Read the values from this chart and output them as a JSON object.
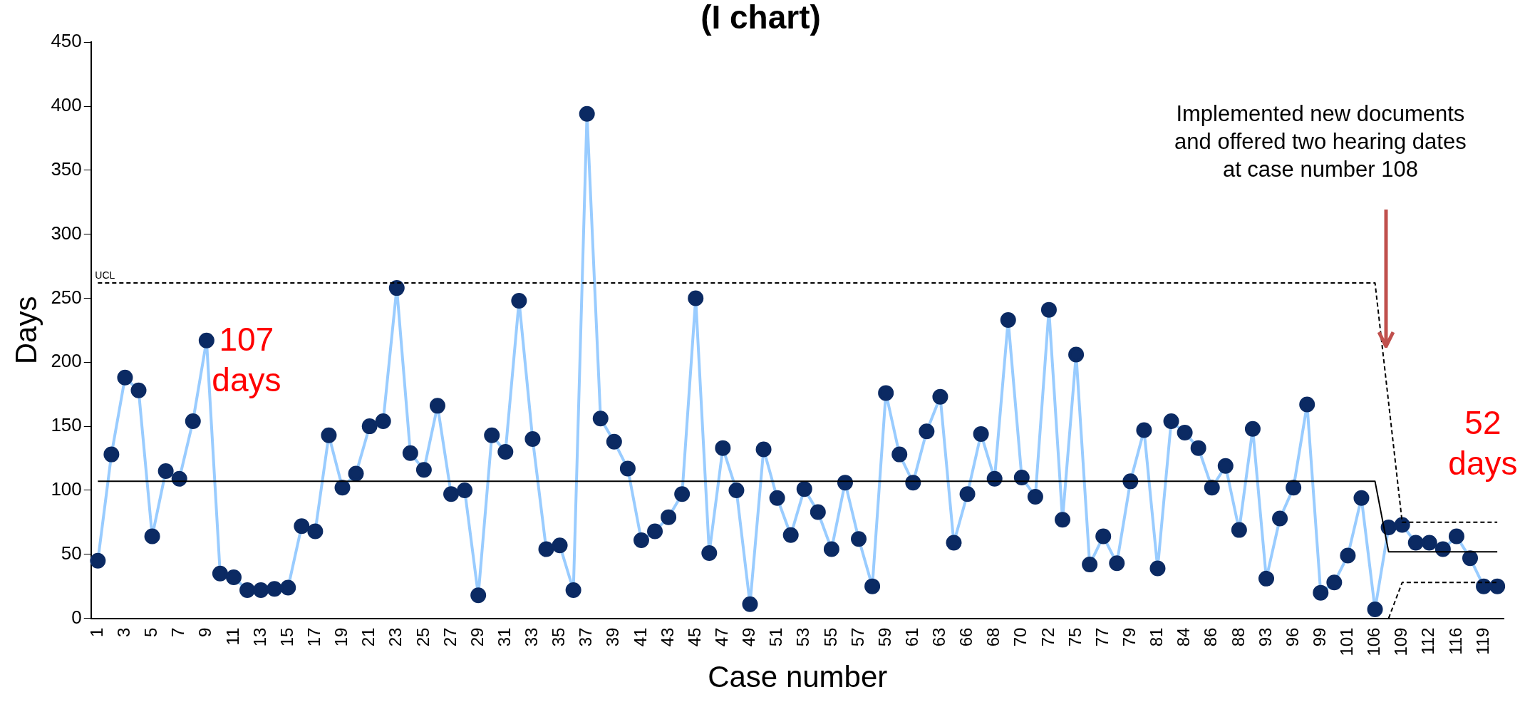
{
  "chart_data": {
    "type": "line",
    "title": "(I chart)",
    "xlabel": "Case number",
    "ylabel": "Days",
    "ylim": [
      0,
      450
    ],
    "yticks": [
      0,
      50,
      100,
      150,
      200,
      250,
      300,
      350,
      400,
      450
    ],
    "categories": [
      "1",
      null,
      "3",
      null,
      "5",
      null,
      "7",
      null,
      "9",
      null,
      "11",
      null,
      "13",
      null,
      "15",
      null,
      "17",
      null,
      "19",
      null,
      "21",
      null,
      "23",
      null,
      "25",
      null,
      "27",
      null,
      "29",
      null,
      "31",
      null,
      "33",
      null,
      "35",
      null,
      "37",
      null,
      "39",
      null,
      "41",
      null,
      "43",
      null,
      "45",
      null,
      "47",
      null,
      "49",
      null,
      "51",
      null,
      "53",
      null,
      "55",
      null,
      "57",
      null,
      "59",
      null,
      "61",
      null,
      "63",
      null,
      "66",
      null,
      "68",
      null,
      "70",
      null,
      "72",
      null,
      "75",
      null,
      "77",
      null,
      "79",
      null,
      "81",
      null,
      "84",
      null,
      "86",
      null,
      "88",
      null,
      "93",
      null,
      "96",
      null,
      "99",
      null,
      "101",
      null,
      "106",
      null,
      "109",
      null,
      "112",
      null,
      "116",
      null,
      "119",
      null
    ],
    "marker": "circle",
    "series": [
      {
        "color": "#99ccff",
        "line_style": "solid",
        "colors": [
          "#0b2a63",
          "#0b2a63",
          "#0b2a63",
          "#0b2a63",
          "#0b2a63",
          "#0b2a63",
          "#0b2a63",
          "#0b2a63",
          "#0b2a63",
          "#0b2a63",
          "#0b2a63",
          "#0b2a63",
          "#0b2a63",
          "#0b2a63",
          "#0b2a63",
          "#0b2a63",
          "#0b2a63",
          "#0b2a63",
          "#0b2a63",
          "#0b2a63",
          "#0b2a63",
          "#0b2a63",
          "#0b2a63",
          "#0b2a63",
          "#0b2a63",
          "#0b2a63",
          "#0b2a63",
          "#0b2a63",
          "#0b2a63",
          "#0b2a63",
          "#0b2a63",
          "#0b2a63",
          "#0b2a63",
          "#0b2a63",
          "#0b2a63",
          "#0b2a63",
          "#0b2a63",
          "#0b2a63",
          "#0b2a63",
          "#0b2a63",
          "#0b2a63",
          "#0b2a63",
          "#0b2a63",
          "#0b2a63",
          "#0b2a63",
          "#0b2a63",
          "#0b2a63",
          "#0b2a63",
          "#0b2a63",
          "#0b2a63",
          "#0b2a63",
          "#0b2a63",
          "#0b2a63",
          "#0b2a63",
          "#0b2a63",
          "#0b2a63",
          "#0b2a63",
          "#0b2a63",
          "#0b2a63",
          "#0b2a63",
          "#0b2a63",
          "#0b2a63",
          "#0b2a63",
          "#0b2a63",
          "#0b2a63",
          "#0b2a63",
          "#0b2a63",
          "#0b2a63",
          "#0b2a63",
          "#0b2a63",
          "#0b2a63",
          "#0b2a63",
          "#0b2a63",
          "#0b2a63",
          "#0b2a63",
          "#0b2a63",
          "#0b2a63",
          "#0b2a63",
          "#0b2a63",
          "#0b2a63",
          "#0b2a63",
          "#0b2a63",
          "#0b2a63",
          "#0b2a63",
          "#0b2a63",
          "#0b2a63",
          "#0b2a63",
          "#0b2a63",
          "#0b2a63",
          "#0b2a63",
          "#0b2a63",
          "#0b2a63",
          "#0b2a63",
          "#0b2a63",
          "#0b2a63",
          "#0b2a63",
          "#0b2a63",
          "#0b2a63",
          "#0b2a63",
          "#0b2a63",
          "#0b2a63",
          "#0b2a63",
          "#0b2a63",
          "#0b2a63"
        ],
        "values": [
          45,
          128,
          188,
          178,
          64,
          115,
          109,
          154,
          217,
          35,
          32,
          22,
          22,
          23,
          24,
          72,
          68,
          143,
          102,
          113,
          150,
          154,
          258,
          129,
          116,
          166,
          97,
          100,
          18,
          143,
          130,
          248,
          140,
          54,
          57,
          22,
          394,
          156,
          138,
          117,
          61,
          68,
          79,
          97,
          250,
          51,
          133,
          100,
          11,
          132,
          94,
          65,
          101,
          83,
          54,
          106,
          62,
          25,
          176,
          128,
          106,
          146,
          173,
          59,
          97,
          144,
          109,
          233,
          110,
          95,
          241,
          77,
          206,
          42,
          64,
          43,
          107,
          147,
          39,
          154,
          145,
          133,
          102,
          119,
          69,
          148,
          31,
          78,
          102,
          167,
          20,
          28,
          49,
          94,
          7,
          71,
          73,
          59,
          59,
          54,
          64,
          47,
          25,
          25
        ]
      },
      {
        "name": "UCL",
        "color": "#000000",
        "marker": "none",
        "line_style": "dashed",
        "values": [
          262,
          262,
          262,
          262,
          262,
          262,
          262,
          262,
          262,
          262,
          262,
          262,
          262,
          262,
          262,
          262,
          262,
          262,
          262,
          262,
          262,
          262,
          262,
          262,
          262,
          262,
          262,
          262,
          262,
          262,
          262,
          262,
          262,
          262,
          262,
          262,
          262,
          262,
          262,
          262,
          262,
          262,
          262,
          262,
          262,
          262,
          262,
          262,
          262,
          262,
          262,
          262,
          262,
          262,
          262,
          262,
          262,
          262,
          262,
          262,
          262,
          262,
          262,
          262,
          262,
          262,
          262,
          262,
          262,
          262,
          262,
          262,
          262,
          262,
          262,
          262,
          262,
          262,
          262,
          262,
          262,
          262,
          262,
          262,
          262,
          262,
          262,
          262,
          262,
          262,
          262,
          262,
          262,
          262,
          262,
          null,
          75,
          75,
          75,
          75,
          75,
          75,
          75,
          75
        ]
      },
      {
        "color": "#000000",
        "marker": "none",
        "line_style": "solid",
        "values": [
          107,
          107,
          107,
          107,
          107,
          107,
          107,
          107,
          107,
          107,
          107,
          107,
          107,
          107,
          107,
          107,
          107,
          107,
          107,
          107,
          107,
          107,
          107,
          107,
          107,
          107,
          107,
          107,
          107,
          107,
          107,
          107,
          107,
          107,
          107,
          107,
          107,
          107,
          107,
          107,
          107,
          107,
          107,
          107,
          107,
          107,
          107,
          107,
          107,
          107,
          107,
          107,
          107,
          107,
          107,
          107,
          107,
          107,
          107,
          107,
          107,
          107,
          107,
          107,
          107,
          107,
          107,
          107,
          107,
          107,
          107,
          107,
          107,
          107,
          107,
          107,
          107,
          107,
          107,
          107,
          107,
          107,
          107,
          107,
          107,
          107,
          107,
          107,
          107,
          107,
          107,
          107,
          107,
          107,
          107,
          52,
          52,
          52,
          52,
          52,
          52,
          52,
          52,
          52
        ]
      },
      {
        "color": "#000000",
        "marker": "none",
        "line_style": "dashed",
        "values": [
          null,
          null,
          null,
          null,
          null,
          null,
          null,
          null,
          null,
          null,
          null,
          null,
          null,
          null,
          null,
          null,
          null,
          null,
          null,
          null,
          null,
          null,
          null,
          null,
          null,
          null,
          null,
          null,
          null,
          null,
          null,
          null,
          null,
          null,
          null,
          null,
          null,
          null,
          null,
          null,
          null,
          null,
          null,
          null,
          null,
          null,
          null,
          null,
          null,
          null,
          null,
          null,
          null,
          null,
          null,
          null,
          null,
          null,
          null,
          null,
          null,
          null,
          null,
          null,
          null,
          null,
          null,
          null,
          null,
          null,
          null,
          null,
          null,
          null,
          null,
          null,
          null,
          null,
          null,
          null,
          null,
          null,
          null,
          null,
          null,
          null,
          null,
          null,
          null,
          null,
          null,
          null,
          null,
          null,
          null,
          0,
          28,
          28,
          28,
          28,
          28,
          28,
          28,
          28
        ]
      }
    ],
    "annotations": [
      "107 days",
      "52 days",
      "Implemented new documents  and offered two hearing dates  at case number 108"
    ]
  }
}
